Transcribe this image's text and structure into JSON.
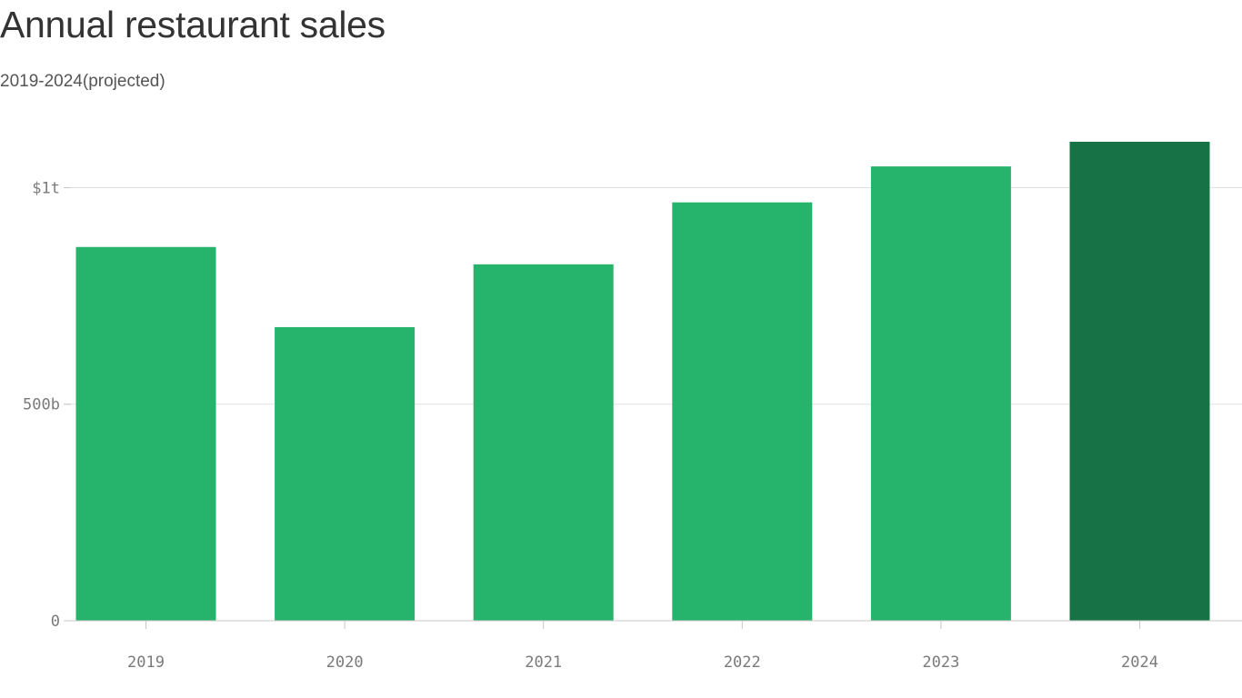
{
  "chart_data": {
    "type": "bar",
    "title": "Annual restaurant sales",
    "subtitle": "2019-2024(projected)",
    "categories": [
      "2019",
      "2020",
      "2021",
      "2022",
      "2023",
      "2024"
    ],
    "values": [
      863,
      678,
      823,
      966,
      1049,
      1106
    ],
    "value_unit": "billions of dollars",
    "ylim": [
      0,
      1150
    ],
    "yticks": [
      {
        "value": 0,
        "label": "0"
      },
      {
        "value": 500,
        "label": "500b"
      },
      {
        "value": 1000,
        "label": "$1t"
      }
    ],
    "highlight_category": "2024",
    "grid": true,
    "xlabel": "",
    "ylabel": ""
  },
  "colors": {
    "bar": "#26b36b",
    "bar_highlight": "#177245",
    "gridline": "#e2e2e2",
    "axis": "#c8c8c8"
  }
}
